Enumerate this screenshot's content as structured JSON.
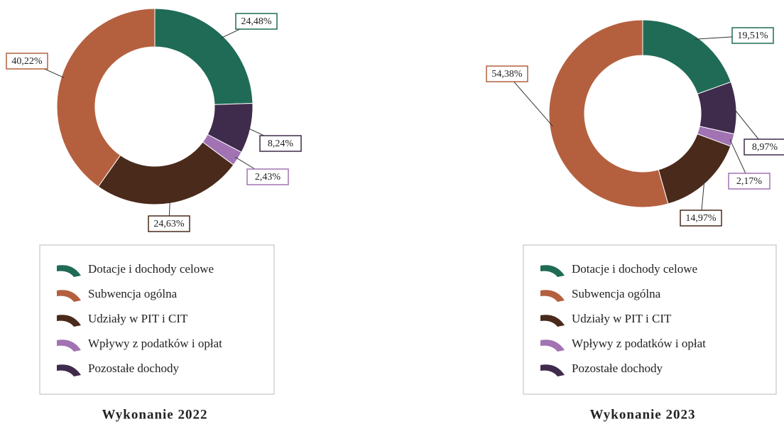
{
  "chart_data": [
    {
      "type": "donut",
      "title": "Wykonanie 2022",
      "categories": [
        "Dotacje i dochody celowe",
        "Subwencja ogólna",
        "Udziały w PIT i CIT",
        "Wpływy z podatków i opłat",
        "Pozostałe dochody"
      ],
      "values": [
        24.48,
        40.22,
        24.63,
        2.43,
        8.24
      ],
      "value_labels": [
        "24,48%",
        "40,22%",
        "24,63%",
        "2,43%",
        "8,24%"
      ],
      "colors": [
        "#1f6b56",
        "#b4603f",
        "#4a2a1b",
        "#a173b3",
        "#3f2b4b"
      ]
    },
    {
      "type": "donut",
      "title": "Wykonanie 2023",
      "categories": [
        "Dotacje i dochody celowe",
        "Subwencja ogólna",
        "Udziały w PIT i CIT",
        "Wpływy z podatków i opłat",
        "Pozostałe dochody"
      ],
      "values": [
        19.51,
        54.38,
        14.97,
        2.17,
        8.97
      ],
      "value_labels": [
        "19,51%",
        "54,38%",
        "14,97%",
        "2,17%",
        "8,97%"
      ],
      "colors": [
        "#1f6b56",
        "#b4603f",
        "#4a2a1b",
        "#a173b3",
        "#3f2b4b"
      ]
    }
  ]
}
